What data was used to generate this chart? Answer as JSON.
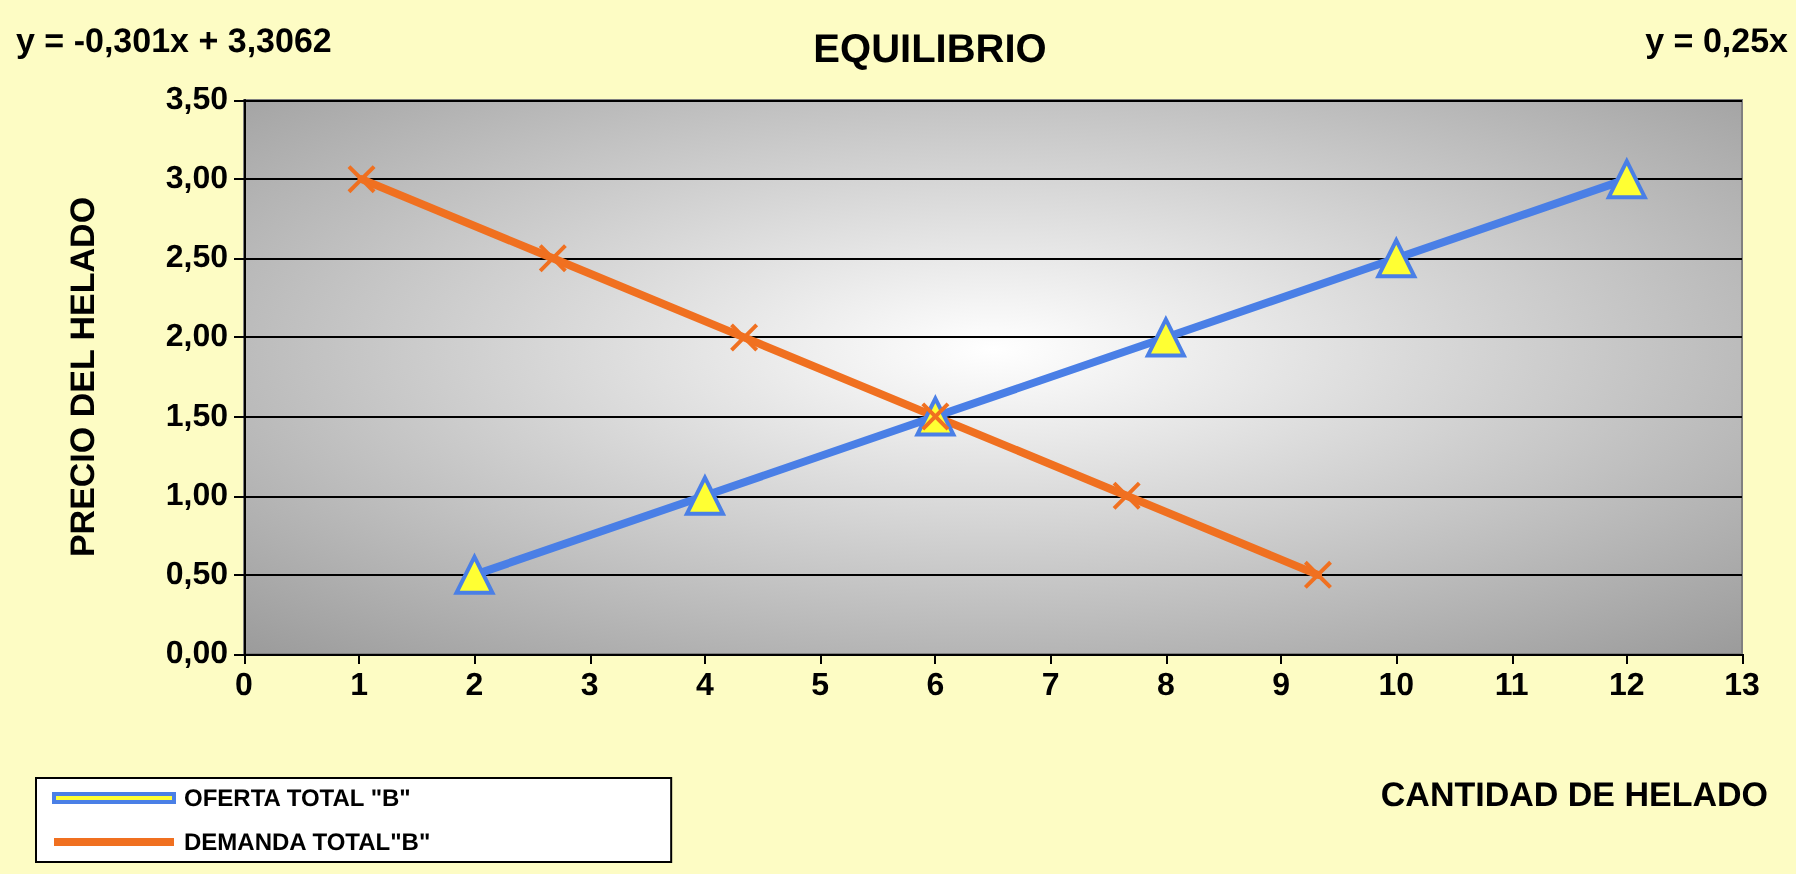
{
  "chart_data": {
    "type": "line",
    "title": "EQUILIBRIO",
    "xlabel": "CANTIDAD DE HELADO",
    "ylabel": "PRECIO DEL HELADO",
    "annotations": [
      "y = -0,301x + 3,3062",
      "y = 0,25x"
    ],
    "series": [
      {
        "name": "OFERTA TOTAL \"B\"",
        "color": "#4a7fe6",
        "marker": "triangle",
        "x": [
          2,
          4,
          6,
          8,
          10,
          12
        ],
        "values": [
          0.5,
          1,
          1.5,
          2,
          2.5,
          3
        ]
      },
      {
        "name": "DEMANDA TOTAL\"B\"",
        "color": "#f07020",
        "marker": "cross",
        "x": [
          1.02,
          2.68,
          4.34,
          6,
          7.66,
          9.32
        ],
        "values": [
          3,
          2.5,
          2,
          1.5,
          1,
          0.5
        ]
      }
    ],
    "xlim": [
      0,
      13
    ],
    "xticks": [
      0,
      1,
      2,
      3,
      4,
      5,
      6,
      7,
      8,
      9,
      10,
      11,
      12,
      13
    ],
    "ylim": [
      0,
      3.5
    ],
    "yticks": [
      {
        "value": 0,
        "label": "0,00"
      },
      {
        "value": 0.5,
        "label": "0,50"
      },
      {
        "value": 1,
        "label": "1,00"
      },
      {
        "value": 1.5,
        "label": "1,50"
      },
      {
        "value": 2,
        "label": "2,00"
      },
      {
        "value": 2.5,
        "label": "2,50"
      },
      {
        "value": 3,
        "label": "3,00"
      },
      {
        "value": 3.5,
        "label": "3,50"
      }
    ],
    "grid": "y",
    "legend": "bottom left",
    "line_style": "solid"
  }
}
